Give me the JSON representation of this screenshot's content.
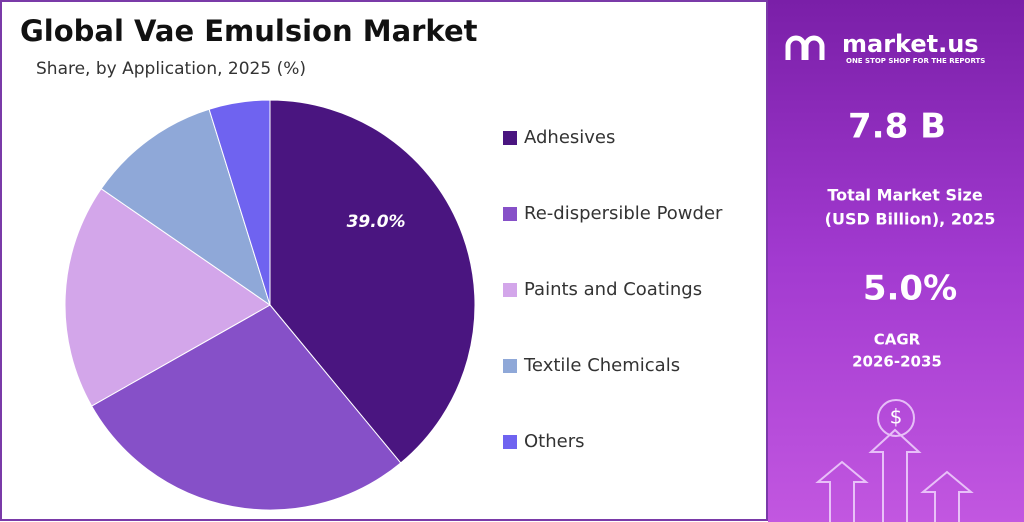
{
  "chart_data": {
    "type": "pie",
    "title": "Global Vae Emulsion Market",
    "subtitle": "Share, by Application, 2025 (%)",
    "categories": [
      "Adhesives",
      "Re-dispersible Powder",
      "Paints and Coatings",
      "Textile Chemicals",
      "Others"
    ],
    "values": [
      39.0,
      27.8,
      17.8,
      10.6,
      4.8
    ],
    "value_labels": [
      "39.0%",
      null,
      null,
      null,
      null
    ],
    "colors": [
      "#4a1580",
      "#8650c8",
      "#d3a6ea",
      "#8fa8d8",
      "#6f63f0"
    ],
    "legend": "right"
  },
  "sidebar": {
    "brand": "market.us",
    "tagline": "ONE STOP SHOP FOR THE REPORTS",
    "market_size": "7.8 B",
    "market_size_label": [
      "Total Market Size",
      "(USD Billion), 2025"
    ],
    "cagr": "5.0%",
    "cagr_label": [
      "CAGR",
      "2026-2035"
    ]
  }
}
